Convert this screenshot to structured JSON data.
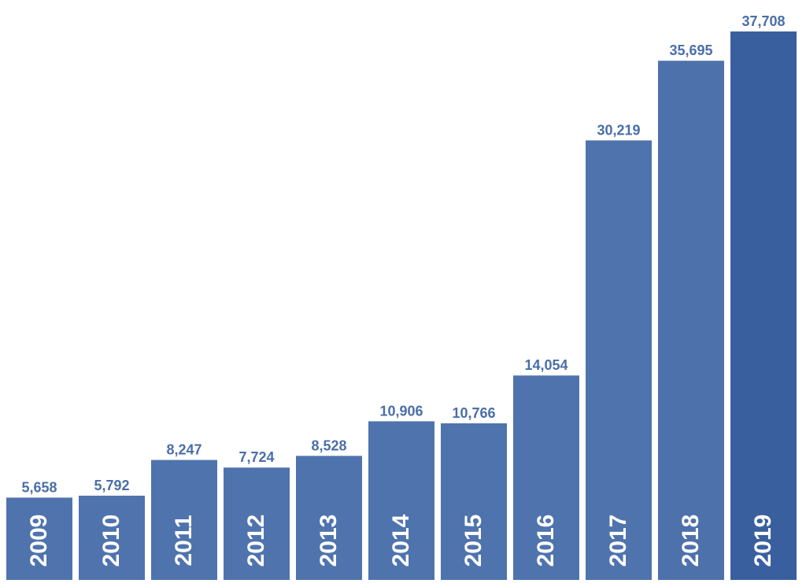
{
  "chart_data": {
    "type": "bar",
    "categories": [
      "2009",
      "2010",
      "2011",
      "2012",
      "2013",
      "2014",
      "2015",
      "2016",
      "2017",
      "2018",
      "2019"
    ],
    "values": [
      5658,
      5792,
      8247,
      7724,
      8528,
      10906,
      10766,
      14054,
      30219,
      35695,
      37708
    ],
    "value_labels": [
      "5,658",
      "5,792",
      "8,247",
      "7,724",
      "8,528",
      "10,906",
      "10,766",
      "14,054",
      "30,219",
      "35,695",
      "37,708"
    ],
    "colors": [
      "#4f73ad",
      "#4f73ad",
      "#4f73ad",
      "#4f73ad",
      "#4f73ad",
      "#4f73ad",
      "#4f73ad",
      "#4f73ad",
      "#4f73ad",
      "#4d71ab",
      "#3a5f9f"
    ]
  }
}
